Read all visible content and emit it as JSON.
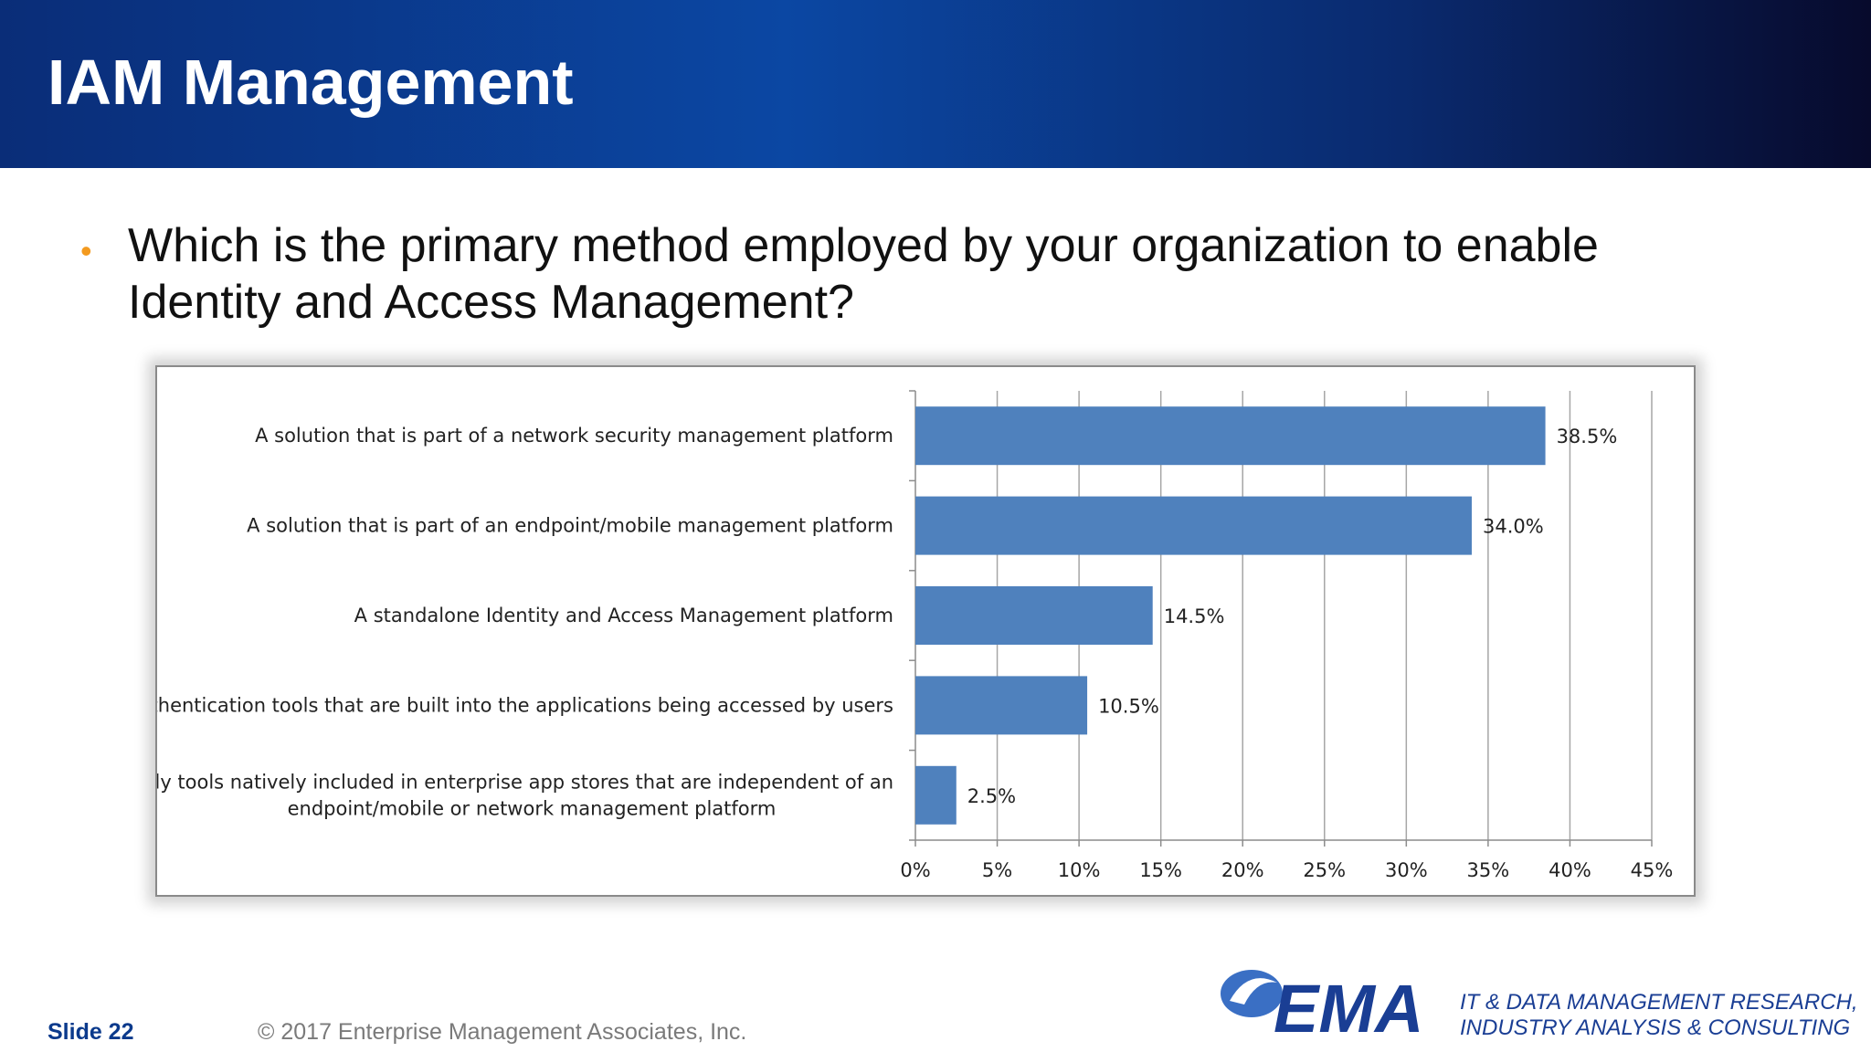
{
  "slide": {
    "title": "IAM Management",
    "question": "Which is the primary method employed by your organization to enable Identity and Access Management?",
    "footer_slide": "Slide 22",
    "footer_copyright": "© 2017 Enterprise Management Associates, Inc.",
    "logo_text": "EMA",
    "tagline_line1": "IT & DATA MANAGEMENT RESEARCH,",
    "tagline_line2": "INDUSTRY ANALYSIS & CONSULTING"
  },
  "colors": {
    "bar": "#4f81bd",
    "header_dark": "#070a2c",
    "header_blue": "#0b47a3",
    "bullet": "#f39a1f",
    "brand": "#1a3e94"
  },
  "chart_data": {
    "type": "bar",
    "orientation": "horizontal",
    "categories": [
      [
        "A solution that is part of a network security management platform"
      ],
      [
        "A solution that is part of an endpoint/mobile management platform"
      ],
      [
        "A standalone Identity and Access Management platform"
      ],
      [
        "Authentication tools that are built into the applications being accessed by users"
      ],
      [
        "Only tools natively included in enterprise app stores that are independent of an",
        "endpoint/mobile or network management platform"
      ]
    ],
    "values": [
      38.5,
      34.0,
      14.5,
      10.5,
      2.5
    ],
    "data_labels": [
      "38.5%",
      "34.0%",
      "14.5%",
      "10.5%",
      "2.5%"
    ],
    "xlim": [
      0,
      45
    ],
    "ticks": [
      0,
      5,
      10,
      15,
      20,
      25,
      30,
      35,
      40,
      45
    ],
    "tick_labels": [
      "0%",
      "5%",
      "10%",
      "15%",
      "20%",
      "25%",
      "30%",
      "35%",
      "40%",
      "45%"
    ],
    "grid": "vertical"
  }
}
